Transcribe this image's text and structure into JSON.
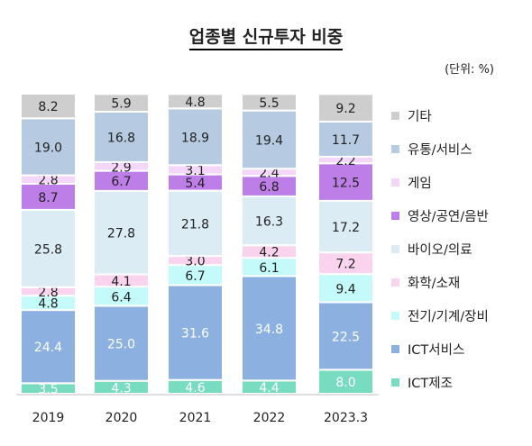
{
  "title": "업종별 신규투자 비중",
  "unit_label": "(단위: %)",
  "chart_data": {
    "type": "bar",
    "stacked": true,
    "title": "업종별 신규투자 비중",
    "unit": "(단위: %)",
    "categories": [
      "2019",
      "2020",
      "2021",
      "2022",
      "2023.3"
    ],
    "ylim": [
      0,
      100
    ],
    "grid": false,
    "legend_position": "right",
    "series": [
      {
        "name": "ICT제조",
        "color": "#78dcc0",
        "values": [
          3.5,
          4.3,
          4.6,
          4.4,
          8.0
        ]
      },
      {
        "name": "ICT서비스",
        "color": "#8cb0e0",
        "values": [
          24.4,
          25.0,
          31.6,
          34.8,
          22.5
        ]
      },
      {
        "name": "전기/기계/장비",
        "color": "#c4fafa",
        "values": [
          4.8,
          6.4,
          6.7,
          6.1,
          9.4
        ]
      },
      {
        "name": "화학/소재",
        "color": "#fad4ee",
        "values": [
          2.8,
          4.1,
          3.0,
          4.2,
          7.2
        ]
      },
      {
        "name": "바이오/의료",
        "color": "#dcecf4",
        "values": [
          25.8,
          27.8,
          21.8,
          16.3,
          17.2
        ]
      },
      {
        "name": "영상/공연/음반",
        "color": "#be7ee8",
        "values": [
          8.7,
          6.7,
          5.4,
          6.8,
          12.5
        ]
      },
      {
        "name": "게임",
        "color": "#f4d6f8",
        "values": [
          2.8,
          2.9,
          3.1,
          2.4,
          2.2
        ]
      },
      {
        "name": "유통/서비스",
        "color": "#b6cae2",
        "values": [
          19.0,
          16.8,
          18.9,
          19.4,
          11.7
        ]
      },
      {
        "name": "기타",
        "color": "#cecece",
        "values": [
          8.2,
          5.9,
          4.8,
          5.5,
          9.2
        ]
      }
    ],
    "white_label_series": [
      "ICT제조",
      "ICT서비스"
    ]
  }
}
